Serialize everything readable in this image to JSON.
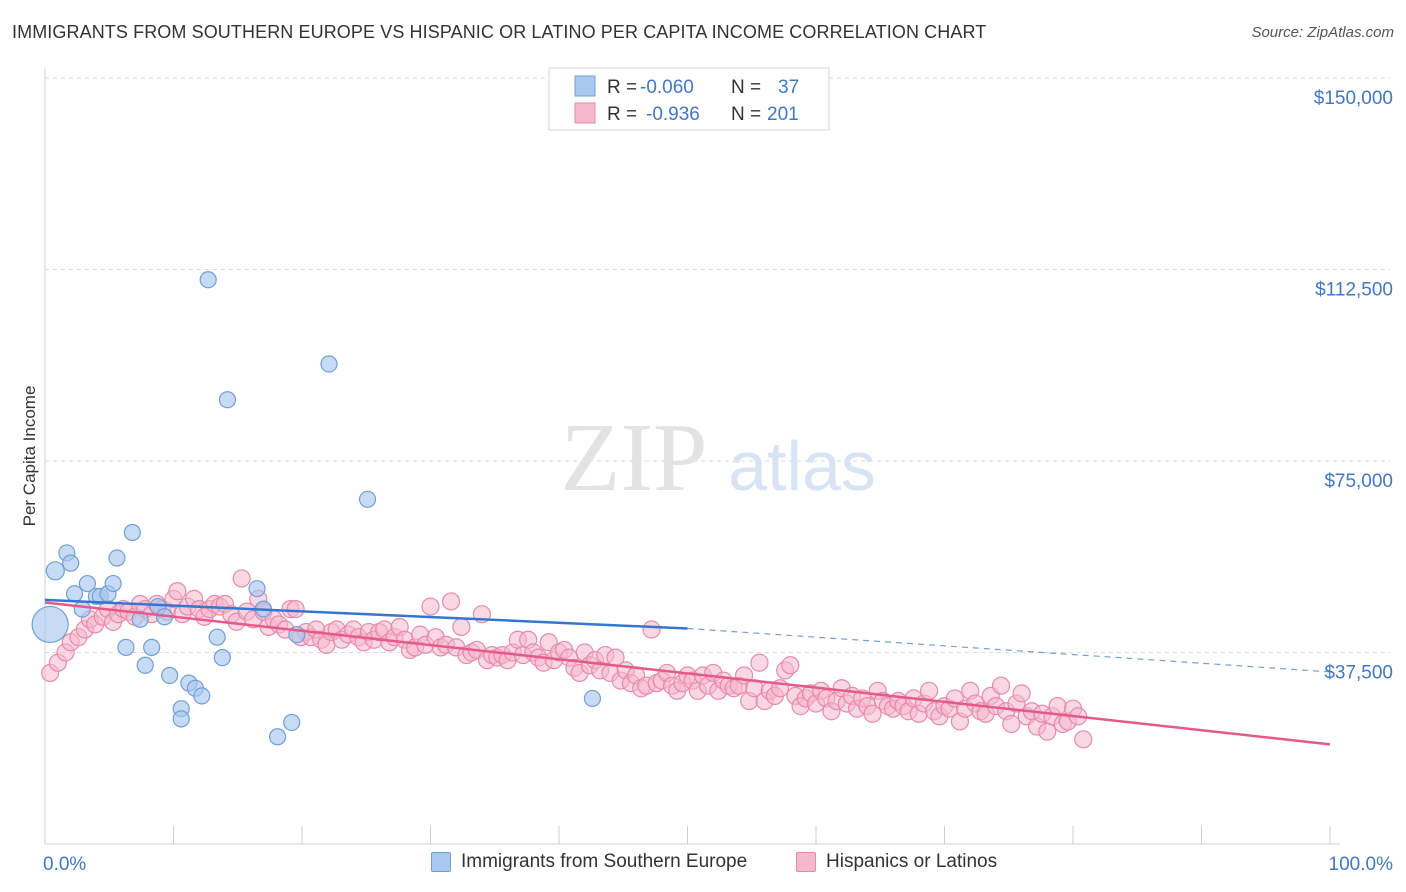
{
  "header": {
    "title": "IMMIGRANTS FROM SOUTHERN EUROPE VS HISPANIC OR LATINO PER CAPITA INCOME CORRELATION CHART",
    "source": "Source: ZipAtlas.com"
  },
  "watermark": {
    "zip": "ZIP",
    "atlas": "atlas"
  },
  "legend_top": {
    "rows": [
      {
        "r_label": "R =",
        "r_value": "-0.060",
        "n_label": "N =",
        "n_value": "37"
      },
      {
        "r_label": "R =",
        "r_value": "-0.936",
        "n_label": "N =",
        "n_value": "201"
      }
    ]
  },
  "legend_bottom": [
    {
      "label": "Immigrants from Southern Europe"
    },
    {
      "label": "Hispanics or Latinos"
    }
  ],
  "colors": {
    "blue_fill": "#a9c8ee",
    "blue_stroke": "#6f9fd9",
    "blue_line": "#3576d1",
    "pink_fill": "#f5b8cc",
    "pink_stroke": "#e98aa8",
    "pink_line": "#e65a88",
    "axis_text": "#3f78c8",
    "grid": "#d9d9d9"
  },
  "chart_data": {
    "type": "scatter",
    "title": "IMMIGRANTS FROM SOUTHERN EUROPE VS HISPANIC OR LATINO PER CAPITA INCOME CORRELATION CHART",
    "xlabel": "",
    "ylabel": "Per Capita Income",
    "xlim": [
      0,
      100
    ],
    "ylim": [
      0,
      150000
    ],
    "x_tick_labels": [
      "0.0%",
      "100.0%"
    ],
    "y_ticks": [
      37500,
      75000,
      112500,
      150000
    ],
    "y_tick_labels": [
      "$37,500",
      "$75,000",
      "$112,500",
      "$150,000"
    ],
    "grid": true,
    "legend_position": "top-center",
    "series": [
      {
        "name": "Immigrants from Southern Europe",
        "r": -0.06,
        "n": 37,
        "trend": {
          "x": [
            0,
            50
          ],
          "y": [
            47800,
            42200
          ],
          "dashed_extension_to": [
            100,
            33700
          ]
        },
        "points": [
          [
            0.4,
            43000,
            18
          ],
          [
            0.8,
            53500,
            9
          ],
          [
            1.7,
            57000,
            8
          ],
          [
            2.0,
            55000,
            8
          ],
          [
            2.3,
            49000,
            8
          ],
          [
            2.9,
            46000,
            8
          ],
          [
            3.3,
            51000,
            8
          ],
          [
            4.0,
            48500,
            8
          ],
          [
            4.3,
            48500,
            8
          ],
          [
            4.9,
            49000,
            8
          ],
          [
            5.3,
            51000,
            8
          ],
          [
            5.6,
            56000,
            8
          ],
          [
            6.3,
            38500,
            8
          ],
          [
            6.8,
            61000,
            8
          ],
          [
            7.4,
            44000,
            8
          ],
          [
            7.8,
            35000,
            8
          ],
          [
            8.3,
            38500,
            8
          ],
          [
            8.8,
            46500,
            8
          ],
          [
            9.3,
            44500,
            8
          ],
          [
            9.7,
            33000,
            8
          ],
          [
            10.6,
            26500,
            8
          ],
          [
            10.6,
            24500,
            8
          ],
          [
            11.2,
            31500,
            8
          ],
          [
            11.7,
            30500,
            8
          ],
          [
            12.2,
            29000,
            8
          ],
          [
            12.7,
            110500,
            8
          ],
          [
            13.4,
            40500,
            8
          ],
          [
            13.8,
            36500,
            8
          ],
          [
            14.2,
            87000,
            8
          ],
          [
            16.5,
            50000,
            8
          ],
          [
            17.0,
            46000,
            8
          ],
          [
            18.1,
            21000,
            8
          ],
          [
            19.2,
            23800,
            8
          ],
          [
            19.6,
            41000,
            8
          ],
          [
            22.1,
            94000,
            8
          ],
          [
            25.1,
            67500,
            8
          ],
          [
            42.6,
            28500,
            8
          ]
        ]
      },
      {
        "name": "Hispanics or Latinos",
        "r": -0.936,
        "n": 201,
        "trend": {
          "x": [
            0,
            100
          ],
          "y": [
            47300,
            19500
          ]
        },
        "points": [
          [
            0.4,
            33500
          ],
          [
            1.0,
            35500
          ],
          [
            1.6,
            37500
          ],
          [
            2.0,
            39500
          ],
          [
            2.6,
            40500
          ],
          [
            3.1,
            42000
          ],
          [
            3.5,
            44000
          ],
          [
            3.9,
            43000
          ],
          [
            4.5,
            44500
          ],
          [
            4.9,
            46000
          ],
          [
            5.3,
            43500
          ],
          [
            5.7,
            45000
          ],
          [
            6.1,
            46000
          ],
          [
            6.5,
            45500
          ],
          [
            7.0,
            44500
          ],
          [
            7.4,
            47000
          ],
          [
            7.8,
            46000
          ],
          [
            8.3,
            45000
          ],
          [
            8.7,
            47000
          ],
          [
            9.1,
            46000
          ],
          [
            9.5,
            45500
          ],
          [
            10.0,
            48000
          ],
          [
            10.3,
            49500
          ],
          [
            10.7,
            45000
          ],
          [
            11.1,
            46500
          ],
          [
            11.6,
            48000
          ],
          [
            12.0,
            46000
          ],
          [
            12.4,
            44500
          ],
          [
            12.8,
            46000
          ],
          [
            13.2,
            47000
          ],
          [
            13.6,
            46500
          ],
          [
            14.0,
            47000
          ],
          [
            14.5,
            45000
          ],
          [
            14.9,
            43500
          ],
          [
            15.3,
            52000
          ],
          [
            15.7,
            45500
          ],
          [
            16.2,
            44000
          ],
          [
            16.6,
            48000
          ],
          [
            17.0,
            45500
          ],
          [
            17.4,
            42500
          ],
          [
            17.8,
            44000
          ],
          [
            18.2,
            43000
          ],
          [
            18.7,
            42000
          ],
          [
            19.1,
            46000
          ],
          [
            19.5,
            46000
          ],
          [
            19.9,
            40500
          ],
          [
            20.3,
            41500
          ],
          [
            20.7,
            40500
          ],
          [
            21.1,
            42000
          ],
          [
            21.5,
            40000
          ],
          [
            21.9,
            39000
          ],
          [
            22.3,
            41500
          ],
          [
            22.7,
            42000
          ],
          [
            23.1,
            40000
          ],
          [
            23.6,
            41000
          ],
          [
            24.0,
            42000
          ],
          [
            24.4,
            40500
          ],
          [
            24.8,
            39500
          ],
          [
            25.2,
            41500
          ],
          [
            25.6,
            40000
          ],
          [
            26.0,
            41500
          ],
          [
            26.4,
            42000
          ],
          [
            26.8,
            39500
          ],
          [
            27.2,
            40500
          ],
          [
            27.6,
            42500
          ],
          [
            28.0,
            40000
          ],
          [
            28.4,
            38000
          ],
          [
            28.8,
            38500
          ],
          [
            29.2,
            41000
          ],
          [
            29.6,
            39000
          ],
          [
            30.0,
            46500
          ],
          [
            30.4,
            40500
          ],
          [
            30.8,
            38500
          ],
          [
            31.2,
            39000
          ],
          [
            31.6,
            47500
          ],
          [
            32.0,
            38500
          ],
          [
            32.4,
            42500
          ],
          [
            32.8,
            37000
          ],
          [
            33.2,
            37500
          ],
          [
            33.6,
            38000
          ],
          [
            34.0,
            45000
          ],
          [
            34.4,
            36000
          ],
          [
            34.8,
            37000
          ],
          [
            35.2,
            36500
          ],
          [
            35.6,
            37000
          ],
          [
            36.0,
            36000
          ],
          [
            36.4,
            37500
          ],
          [
            36.8,
            40000
          ],
          [
            37.2,
            37000
          ],
          [
            37.6,
            40000
          ],
          [
            38.0,
            37500
          ],
          [
            38.4,
            36500
          ],
          [
            38.8,
            35500
          ],
          [
            39.2,
            39500
          ],
          [
            39.6,
            36000
          ],
          [
            40.0,
            37500
          ],
          [
            40.4,
            38000
          ],
          [
            40.8,
            36500
          ],
          [
            41.2,
            34500
          ],
          [
            41.6,
            33500
          ],
          [
            42.0,
            37500
          ],
          [
            42.4,
            35000
          ],
          [
            42.8,
            36000
          ],
          [
            43.2,
            34000
          ],
          [
            43.6,
            37000
          ],
          [
            44.0,
            33500
          ],
          [
            44.4,
            36500
          ],
          [
            44.8,
            32000
          ],
          [
            45.2,
            34000
          ],
          [
            45.6,
            31500
          ],
          [
            46.0,
            33000
          ],
          [
            46.4,
            30500
          ],
          [
            46.8,
            31000
          ],
          [
            47.2,
            42000
          ],
          [
            47.6,
            31500
          ],
          [
            48.0,
            32000
          ],
          [
            48.4,
            33500
          ],
          [
            48.8,
            31000
          ],
          [
            49.2,
            30000
          ],
          [
            49.6,
            31500
          ],
          [
            50.0,
            33000
          ],
          [
            50.4,
            32000
          ],
          [
            50.8,
            30000
          ],
          [
            51.2,
            33000
          ],
          [
            51.6,
            31000
          ],
          [
            52.0,
            33500
          ],
          [
            52.4,
            30000
          ],
          [
            52.8,
            32000
          ],
          [
            53.2,
            31000
          ],
          [
            53.6,
            30500
          ],
          [
            54.0,
            31000
          ],
          [
            54.4,
            33000
          ],
          [
            54.8,
            28000
          ],
          [
            55.2,
            30500
          ],
          [
            55.6,
            35500
          ],
          [
            56.0,
            28000
          ],
          [
            56.4,
            30000
          ],
          [
            56.8,
            29000
          ],
          [
            57.2,
            30500
          ],
          [
            57.6,
            34000
          ],
          [
            58.0,
            35000
          ],
          [
            58.4,
            29000
          ],
          [
            58.8,
            27000
          ],
          [
            59.2,
            28500
          ],
          [
            59.6,
            29500
          ],
          [
            60.0,
            27500
          ],
          [
            60.4,
            30000
          ],
          [
            60.8,
            28500
          ],
          [
            61.2,
            26000
          ],
          [
            61.6,
            28000
          ],
          [
            62.0,
            30500
          ],
          [
            62.4,
            27500
          ],
          [
            62.8,
            29000
          ],
          [
            63.2,
            26500
          ],
          [
            63.6,
            28500
          ],
          [
            64.0,
            27000
          ],
          [
            64.4,
            25500
          ],
          [
            64.8,
            30000
          ],
          [
            65.2,
            28000
          ],
          [
            65.6,
            27000
          ],
          [
            66.0,
            26500
          ],
          [
            66.4,
            28000
          ],
          [
            66.8,
            27000
          ],
          [
            67.2,
            26000
          ],
          [
            67.6,
            28500
          ],
          [
            68.0,
            25500
          ],
          [
            68.4,
            27500
          ],
          [
            68.8,
            30000
          ],
          [
            69.2,
            26000
          ],
          [
            69.6,
            25000
          ],
          [
            70.0,
            27000
          ],
          [
            70.4,
            26500
          ],
          [
            70.8,
            28500
          ],
          [
            71.2,
            24000
          ],
          [
            71.6,
            26500
          ],
          [
            72.0,
            30000
          ],
          [
            72.4,
            27500
          ],
          [
            72.8,
            26000
          ],
          [
            73.2,
            25500
          ],
          [
            73.6,
            29000
          ],
          [
            74.0,
            27000
          ],
          [
            74.4,
            31000
          ],
          [
            74.8,
            26000
          ],
          [
            75.2,
            23500
          ],
          [
            75.6,
            27500
          ],
          [
            76.0,
            29500
          ],
          [
            76.4,
            25000
          ],
          [
            76.8,
            26000
          ],
          [
            77.2,
            23000
          ],
          [
            77.6,
            25500
          ],
          [
            78.0,
            22000
          ],
          [
            78.4,
            25000
          ],
          [
            78.8,
            27000
          ],
          [
            79.2,
            23500
          ],
          [
            79.6,
            24000
          ],
          [
            80.0,
            26500
          ],
          [
            80.4,
            25000
          ],
          [
            80.8,
            20500
          ]
        ]
      }
    ]
  }
}
